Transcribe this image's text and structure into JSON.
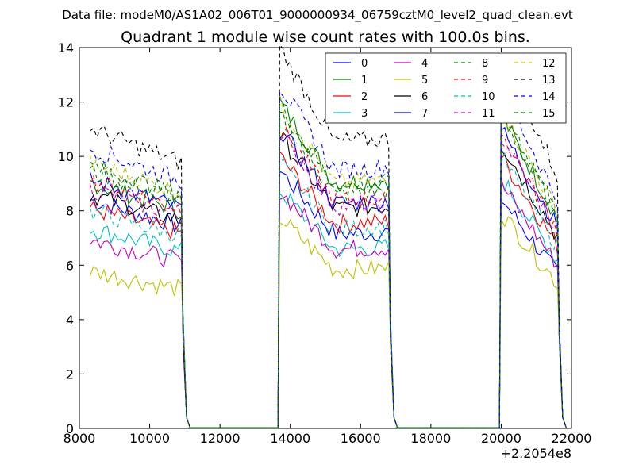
{
  "chart_data": {
    "type": "line",
    "suptitle": "Data file: modeM0/AS1A02_006T01_9000000934_06759cztM0_level2_quad_clean.evt",
    "title": "Quadrant 1 module wise count rates with 100.0s bins.",
    "xlabel": "",
    "ylabel": "",
    "x_offset_label": "+2.2054e8",
    "xlim": [
      8000,
      22000
    ],
    "ylim": [
      0,
      14
    ],
    "xticks": [
      8000,
      10000,
      12000,
      14000,
      16000,
      18000,
      20000,
      22000
    ],
    "yticks": [
      0,
      2,
      4,
      6,
      8,
      10,
      12,
      14
    ],
    "grid": false,
    "legend_position": "top-right",
    "legend_columns": 4,
    "segments": [
      [
        8300,
        10900
      ],
      [
        13700,
        16800
      ],
      [
        20000,
        21600
      ]
    ],
    "drop_points": [
      11100,
      13650,
      16850,
      17000,
      19900
    ],
    "series": [
      {
        "name": "0",
        "color": "#0000ff",
        "style": "solid",
        "levels": [
          8.0,
          7.6,
          6.6
        ]
      },
      {
        "name": "1",
        "color": "#008000",
        "style": "solid",
        "levels": [
          8.6,
          9.6,
          9.0
        ]
      },
      {
        "name": "2",
        "color": "#ff0000",
        "style": "solid",
        "levels": [
          7.7,
          8.0,
          7.8
        ]
      },
      {
        "name": "3",
        "color": "#00bfbf",
        "style": "solid",
        "levels": [
          7.0,
          7.0,
          7.2
        ]
      },
      {
        "name": "4",
        "color": "#bf00bf",
        "style": "solid",
        "levels": [
          6.6,
          7.0,
          7.0
        ]
      },
      {
        "name": "5",
        "color": "#bfbf00",
        "style": "solid",
        "levels": [
          5.5,
          6.2,
          6.2
        ]
      },
      {
        "name": "6",
        "color": "#000000",
        "style": "solid",
        "levels": [
          8.2,
          8.6,
          8.2
        ]
      },
      {
        "name": "7",
        "color": "#0000ff",
        "style": "solid",
        "levels": [
          8.7,
          8.8,
          8.6
        ]
      },
      {
        "name": "8",
        "color": "#008000",
        "style": "dashed",
        "levels": [
          9.0,
          9.2,
          9.0
        ]
      },
      {
        "name": "9",
        "color": "#ff0000",
        "style": "dashed",
        "levels": [
          8.7,
          8.9,
          8.5
        ]
      },
      {
        "name": "10",
        "color": "#00bfbf",
        "style": "dashed",
        "levels": [
          7.6,
          7.8,
          7.8
        ]
      },
      {
        "name": "11",
        "color": "#bf00bf",
        "style": "dashed",
        "levels": [
          8.4,
          8.7,
          8.4
        ]
      },
      {
        "name": "12",
        "color": "#bfbf00",
        "style": "dashed",
        "levels": [
          9.3,
          9.6,
          9.2
        ]
      },
      {
        "name": "13",
        "color": "#000000",
        "style": "dashed",
        "levels": [
          10.5,
          11.2,
          10.8
        ]
      },
      {
        "name": "14",
        "color": "#0000ff",
        "style": "dashed",
        "levels": [
          9.8,
          10.1,
          9.8
        ]
      },
      {
        "name": "15",
        "color": "#008000",
        "style": "dashed",
        "levels": [
          9.2,
          9.5,
          9.3
        ]
      }
    ]
  }
}
